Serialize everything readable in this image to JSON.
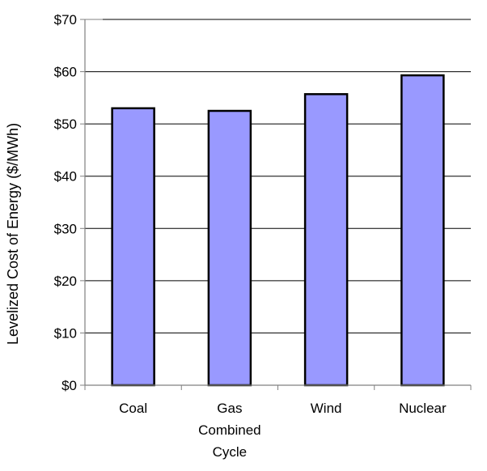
{
  "chart_data": {
    "type": "bar",
    "title": "",
    "xlabel": "",
    "ylabel": "Levelized Cost of Energy ($/MWh)",
    "categories": [
      [
        "Coal"
      ],
      [
        "Gas",
        "Combined",
        "Cycle"
      ],
      [
        "Wind"
      ],
      [
        "Nuclear"
      ]
    ],
    "values": [
      53,
      52.5,
      55.7,
      59.3
    ],
    "ylim": [
      0,
      70
    ],
    "yticks": [
      0,
      10,
      20,
      30,
      40,
      50,
      60,
      70
    ],
    "ytick_labels": [
      "$0",
      "$10",
      "$20",
      "$30",
      "$40",
      "$50",
      "$60",
      "$70"
    ],
    "grid": true,
    "legend": "none",
    "colors": {
      "bar_fill": "#9999ff",
      "bar_stroke": "#000000",
      "gridline": "#000000",
      "axis": "#808080"
    }
  }
}
